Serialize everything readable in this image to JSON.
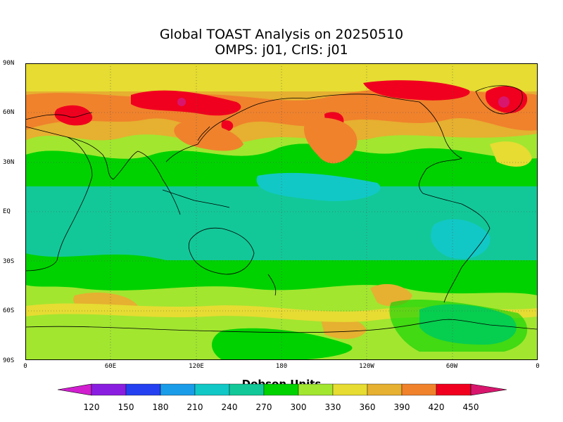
{
  "title_line1": "Global TOAST Analysis on 20250510",
  "title_line2": "OMPS: j01, CrIS: j01",
  "lat_labels": [
    "90N",
    "60N",
    "30N",
    "EQ",
    "30S",
    "60S",
    "90S"
  ],
  "lon_labels": [
    "0",
    "60E",
    "120E",
    "180",
    "120W",
    "60W",
    "0"
  ],
  "colorbar": {
    "label": "Dobson Units",
    "ticks": [
      "120",
      "150",
      "180",
      "210",
      "240",
      "270",
      "300",
      "330",
      "360",
      "390",
      "420",
      "450"
    ],
    "colors": {
      "below_120": "#d11fd0",
      "120_150": "#8a1ee0",
      "150_180": "#2440f0",
      "180_210": "#1a9ce8",
      "210_240": "#11c8c6",
      "240_270": "#12c898",
      "270_300": "#00d200",
      "300_330": "#a2e630",
      "330_360": "#e6dc32",
      "360_390": "#e6b030",
      "390_420": "#f0822c",
      "420_450": "#f0001e",
      "above_450": "#d8166e"
    }
  },
  "chart_data": {
    "type": "heatmap",
    "title": "Global TOAST Analysis on 20250510",
    "subtitle": "OMPS: j01, CrIS: j01",
    "colorbar_label": "Dobson Units",
    "xlim": [
      "0",
      "0"
    ],
    "ylim": [
      "90S",
      "90N"
    ],
    "grid": "dotted lines at 60° longitude / 30° latitude",
    "bands_by_latitude": [
      {
        "range": "90N-70N",
        "dominant": "330-360",
        "spots": "390-450 over Siberia, Greenland"
      },
      {
        "range": "70N-40N",
        "dominant": "360-420",
        "spots": ">420 over Eurasia and Greenland"
      },
      {
        "range": "40N-20N",
        "dominant": "300-330"
      },
      {
        "range": "20N-20S",
        "dominant": "240-270"
      },
      {
        "range": "20S-50S",
        "dominant": "270-330"
      },
      {
        "range": "50S-70S",
        "dominant": "330-360"
      },
      {
        "range": "70S-90S",
        "dominant": "270-330",
        "spots": "210-240 near Antarctic Peninsula"
      }
    ]
  }
}
